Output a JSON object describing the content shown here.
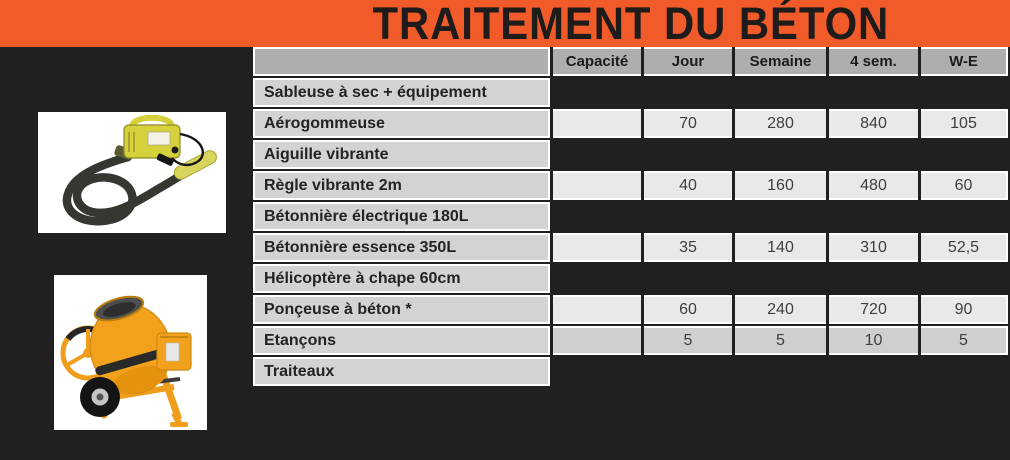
{
  "title": "TRAITEMENT DU BÉTON",
  "colors": {
    "bg": "#211f1f",
    "accent": "#f15a29",
    "head": "#aeaeae",
    "label": "#d3d3d3",
    "cell": "#e9e9e9",
    "cellShade": "#cfcfcf",
    "line": "#ffffff",
    "ink": "#232323",
    "num": "#3e3e3e",
    "titleInk": "#1e1b1b"
  },
  "images": [
    {
      "name": "concrete-vibrator-photo"
    },
    {
      "name": "concrete-mixer-photo"
    }
  ],
  "table": {
    "columns": [
      "Capacité",
      "Jour",
      "Semaine",
      "4 sem.",
      "W-E"
    ],
    "rows": [
      {
        "label": "Sableuse à sec + équipement",
        "values": null
      },
      {
        "label": "Aérogommeuse",
        "values": [
          "",
          "70",
          "280",
          "840",
          "105"
        ]
      },
      {
        "label": "Aiguille vibrante",
        "values": null
      },
      {
        "label": "Règle vibrante 2m",
        "values": [
          "",
          "40",
          "160",
          "480",
          "60"
        ]
      },
      {
        "label": "Bétonnière électrique 180L",
        "values": null
      },
      {
        "label": "Bétonnière essence 350L",
        "values": [
          "",
          "35",
          "140",
          "310",
          "52,5"
        ]
      },
      {
        "label": "Hélicoptère à chape 60cm",
        "values": null
      },
      {
        "label": "Ponçeuse à béton *",
        "values": [
          "",
          "60",
          "240",
          "720",
          "90"
        ]
      },
      {
        "label": "Etançons",
        "values": [
          "",
          "5",
          "5",
          "10",
          "5"
        ],
        "shaded": true
      },
      {
        "label": "Traiteaux",
        "values": null
      }
    ]
  }
}
